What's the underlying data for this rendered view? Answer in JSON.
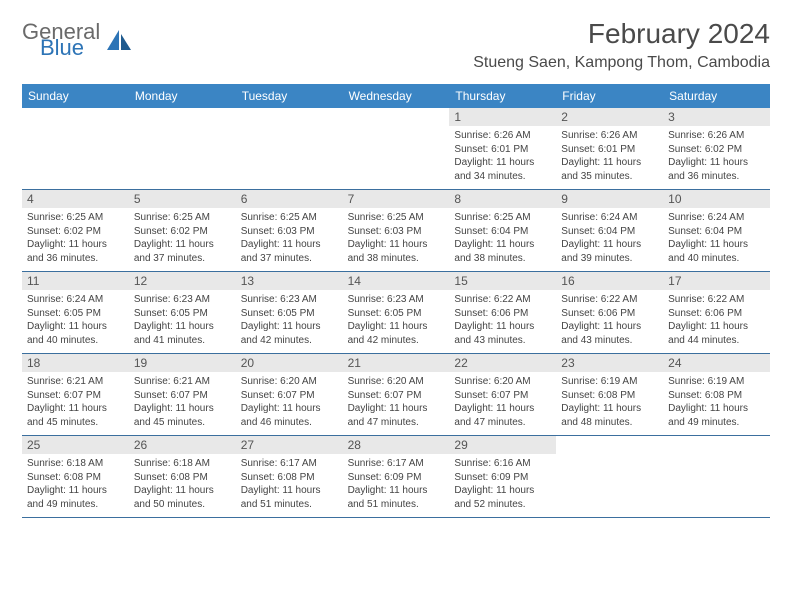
{
  "logo": {
    "general": "General",
    "blue": "Blue"
  },
  "title": "February 2024",
  "location": "Stueng Saen, Kampong Thom, Cambodia",
  "colors": {
    "header_bg": "#3b85c4",
    "header_text": "#ffffff",
    "daynum_bg": "#e8e8e8",
    "rule": "#3b6f9e",
    "logo_gray": "#6a6a6a",
    "logo_blue": "#2d74b6",
    "body_text": "#444444"
  },
  "day_headers": [
    "Sunday",
    "Monday",
    "Tuesday",
    "Wednesday",
    "Thursday",
    "Friday",
    "Saturday"
  ],
  "weeks": [
    [
      {
        "empty": true
      },
      {
        "empty": true
      },
      {
        "empty": true
      },
      {
        "empty": true
      },
      {
        "num": "1",
        "sunrise": "Sunrise: 6:26 AM",
        "sunset": "Sunset: 6:01 PM",
        "day1": "Daylight: 11 hours",
        "day2": "and 34 minutes."
      },
      {
        "num": "2",
        "sunrise": "Sunrise: 6:26 AM",
        "sunset": "Sunset: 6:01 PM",
        "day1": "Daylight: 11 hours",
        "day2": "and 35 minutes."
      },
      {
        "num": "3",
        "sunrise": "Sunrise: 6:26 AM",
        "sunset": "Sunset: 6:02 PM",
        "day1": "Daylight: 11 hours",
        "day2": "and 36 minutes."
      }
    ],
    [
      {
        "num": "4",
        "sunrise": "Sunrise: 6:25 AM",
        "sunset": "Sunset: 6:02 PM",
        "day1": "Daylight: 11 hours",
        "day2": "and 36 minutes."
      },
      {
        "num": "5",
        "sunrise": "Sunrise: 6:25 AM",
        "sunset": "Sunset: 6:02 PM",
        "day1": "Daylight: 11 hours",
        "day2": "and 37 minutes."
      },
      {
        "num": "6",
        "sunrise": "Sunrise: 6:25 AM",
        "sunset": "Sunset: 6:03 PM",
        "day1": "Daylight: 11 hours",
        "day2": "and 37 minutes."
      },
      {
        "num": "7",
        "sunrise": "Sunrise: 6:25 AM",
        "sunset": "Sunset: 6:03 PM",
        "day1": "Daylight: 11 hours",
        "day2": "and 38 minutes."
      },
      {
        "num": "8",
        "sunrise": "Sunrise: 6:25 AM",
        "sunset": "Sunset: 6:04 PM",
        "day1": "Daylight: 11 hours",
        "day2": "and 38 minutes."
      },
      {
        "num": "9",
        "sunrise": "Sunrise: 6:24 AM",
        "sunset": "Sunset: 6:04 PM",
        "day1": "Daylight: 11 hours",
        "day2": "and 39 minutes."
      },
      {
        "num": "10",
        "sunrise": "Sunrise: 6:24 AM",
        "sunset": "Sunset: 6:04 PM",
        "day1": "Daylight: 11 hours",
        "day2": "and 40 minutes."
      }
    ],
    [
      {
        "num": "11",
        "sunrise": "Sunrise: 6:24 AM",
        "sunset": "Sunset: 6:05 PM",
        "day1": "Daylight: 11 hours",
        "day2": "and 40 minutes."
      },
      {
        "num": "12",
        "sunrise": "Sunrise: 6:23 AM",
        "sunset": "Sunset: 6:05 PM",
        "day1": "Daylight: 11 hours",
        "day2": "and 41 minutes."
      },
      {
        "num": "13",
        "sunrise": "Sunrise: 6:23 AM",
        "sunset": "Sunset: 6:05 PM",
        "day1": "Daylight: 11 hours",
        "day2": "and 42 minutes."
      },
      {
        "num": "14",
        "sunrise": "Sunrise: 6:23 AM",
        "sunset": "Sunset: 6:05 PM",
        "day1": "Daylight: 11 hours",
        "day2": "and 42 minutes."
      },
      {
        "num": "15",
        "sunrise": "Sunrise: 6:22 AM",
        "sunset": "Sunset: 6:06 PM",
        "day1": "Daylight: 11 hours",
        "day2": "and 43 minutes."
      },
      {
        "num": "16",
        "sunrise": "Sunrise: 6:22 AM",
        "sunset": "Sunset: 6:06 PM",
        "day1": "Daylight: 11 hours",
        "day2": "and 43 minutes."
      },
      {
        "num": "17",
        "sunrise": "Sunrise: 6:22 AM",
        "sunset": "Sunset: 6:06 PM",
        "day1": "Daylight: 11 hours",
        "day2": "and 44 minutes."
      }
    ],
    [
      {
        "num": "18",
        "sunrise": "Sunrise: 6:21 AM",
        "sunset": "Sunset: 6:07 PM",
        "day1": "Daylight: 11 hours",
        "day2": "and 45 minutes."
      },
      {
        "num": "19",
        "sunrise": "Sunrise: 6:21 AM",
        "sunset": "Sunset: 6:07 PM",
        "day1": "Daylight: 11 hours",
        "day2": "and 45 minutes."
      },
      {
        "num": "20",
        "sunrise": "Sunrise: 6:20 AM",
        "sunset": "Sunset: 6:07 PM",
        "day1": "Daylight: 11 hours",
        "day2": "and 46 minutes."
      },
      {
        "num": "21",
        "sunrise": "Sunrise: 6:20 AM",
        "sunset": "Sunset: 6:07 PM",
        "day1": "Daylight: 11 hours",
        "day2": "and 47 minutes."
      },
      {
        "num": "22",
        "sunrise": "Sunrise: 6:20 AM",
        "sunset": "Sunset: 6:07 PM",
        "day1": "Daylight: 11 hours",
        "day2": "and 47 minutes."
      },
      {
        "num": "23",
        "sunrise": "Sunrise: 6:19 AM",
        "sunset": "Sunset: 6:08 PM",
        "day1": "Daylight: 11 hours",
        "day2": "and 48 minutes."
      },
      {
        "num": "24",
        "sunrise": "Sunrise: 6:19 AM",
        "sunset": "Sunset: 6:08 PM",
        "day1": "Daylight: 11 hours",
        "day2": "and 49 minutes."
      }
    ],
    [
      {
        "num": "25",
        "sunrise": "Sunrise: 6:18 AM",
        "sunset": "Sunset: 6:08 PM",
        "day1": "Daylight: 11 hours",
        "day2": "and 49 minutes."
      },
      {
        "num": "26",
        "sunrise": "Sunrise: 6:18 AM",
        "sunset": "Sunset: 6:08 PM",
        "day1": "Daylight: 11 hours",
        "day2": "and 50 minutes."
      },
      {
        "num": "27",
        "sunrise": "Sunrise: 6:17 AM",
        "sunset": "Sunset: 6:08 PM",
        "day1": "Daylight: 11 hours",
        "day2": "and 51 minutes."
      },
      {
        "num": "28",
        "sunrise": "Sunrise: 6:17 AM",
        "sunset": "Sunset: 6:09 PM",
        "day1": "Daylight: 11 hours",
        "day2": "and 51 minutes."
      },
      {
        "num": "29",
        "sunrise": "Sunrise: 6:16 AM",
        "sunset": "Sunset: 6:09 PM",
        "day1": "Daylight: 11 hours",
        "day2": "and 52 minutes."
      },
      {
        "empty": true
      },
      {
        "empty": true
      }
    ]
  ]
}
